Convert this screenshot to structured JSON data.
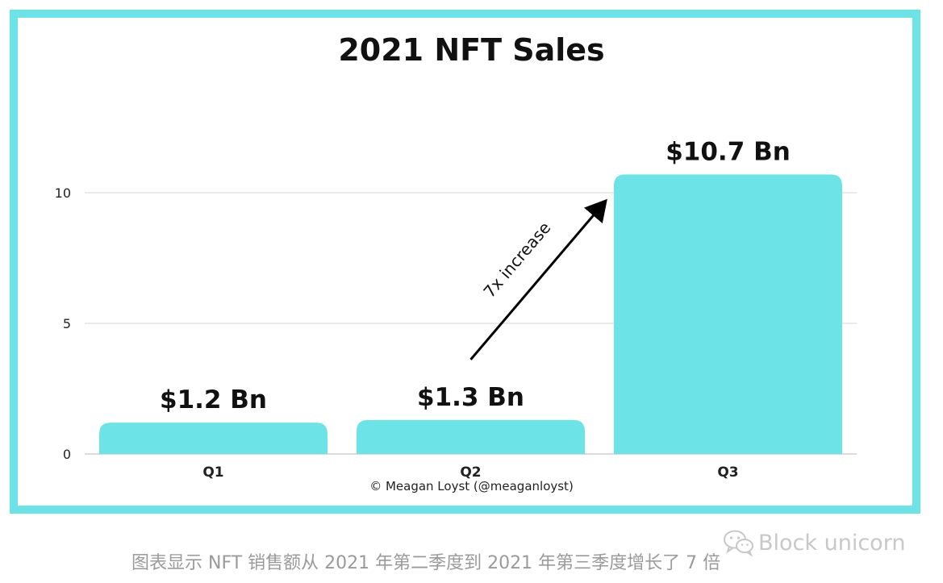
{
  "chart_data": {
    "type": "bar",
    "title": "2021 NFT Sales",
    "categories": [
      "Q1",
      "Q2",
      "Q3"
    ],
    "values": [
      1.2,
      1.3,
      10.7
    ],
    "data_labels": [
      "$1.2 Bn",
      "$1.3 Bn",
      "$10.7 Bn"
    ],
    "yticks": [
      0,
      5,
      10
    ],
    "ylim": [
      0,
      11.5
    ],
    "grid": true,
    "bar_color": "#6ce3e6",
    "annotation": {
      "text": "7x increase",
      "from": "Q2",
      "to": "Q3"
    },
    "credit": "© Meagan Loyst (@meaganloyst)"
  },
  "caption": "图表显示 NFT 销售额从 2021 年第二季度到 2021 年第三季度增长了 7 倍",
  "watermark": {
    "text": "Block unicorn",
    "icon": "wechat-icon"
  }
}
